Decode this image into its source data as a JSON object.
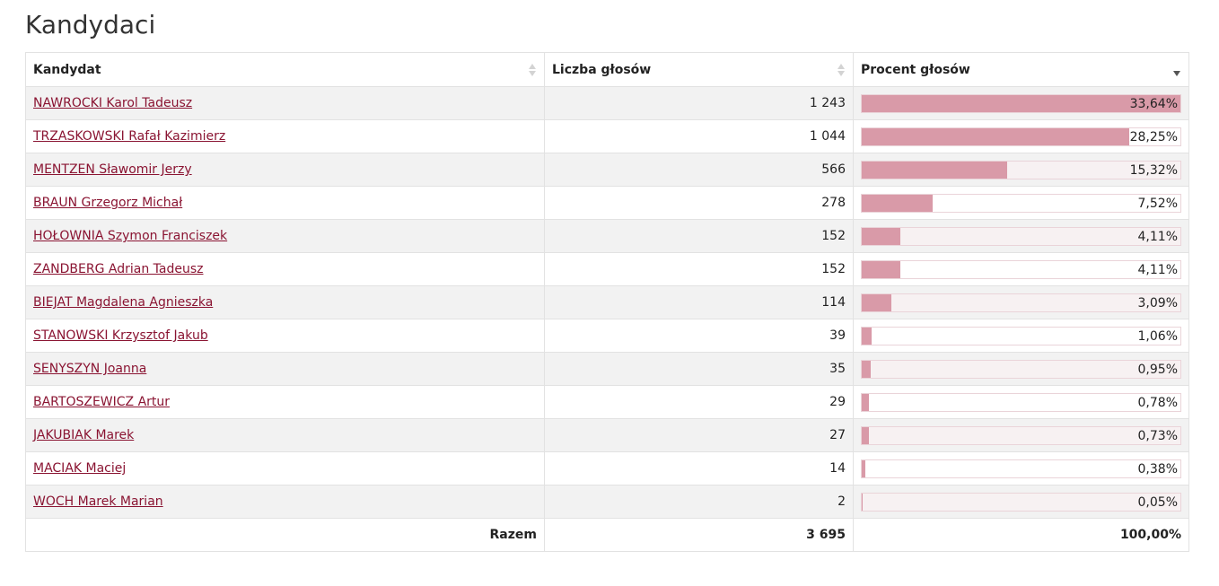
{
  "page": {
    "title": "Kandydaci"
  },
  "table": {
    "headers": {
      "candidate": "Kandydat",
      "votes": "Liczba głosów",
      "percent": "Procent głosów"
    },
    "sort": {
      "column": "percent",
      "direction": "desc"
    },
    "rows": [
      {
        "name": "NAWROCKI Karol Tadeusz",
        "votes": "1 243",
        "percent": "33,64%",
        "share": 33.64
      },
      {
        "name": "TRZASKOWSKI Rafał Kazimierz",
        "votes": "1 044",
        "percent": "28,25%",
        "share": 28.25
      },
      {
        "name": "MENTZEN Sławomir Jerzy",
        "votes": "566",
        "percent": "15,32%",
        "share": 15.32
      },
      {
        "name": "BRAUN Grzegorz Michał",
        "votes": "278",
        "percent": "7,52%",
        "share": 7.52
      },
      {
        "name": "HOŁOWNIA Szymon Franciszek",
        "votes": "152",
        "percent": "4,11%",
        "share": 4.11
      },
      {
        "name": "ZANDBERG Adrian Tadeusz",
        "votes": "152",
        "percent": "4,11%",
        "share": 4.11
      },
      {
        "name": "BIEJAT Magdalena Agnieszka",
        "votes": "114",
        "percent": "3,09%",
        "share": 3.09
      },
      {
        "name": "STANOWSKI Krzysztof Jakub",
        "votes": "39",
        "percent": "1,06%",
        "share": 1.06
      },
      {
        "name": "SENYSZYN Joanna",
        "votes": "35",
        "percent": "0,95%",
        "share": 0.95
      },
      {
        "name": "BARTOSZEWICZ Artur",
        "votes": "29",
        "percent": "0,78%",
        "share": 0.78
      },
      {
        "name": "JAKUBIAK Marek",
        "votes": "27",
        "percent": "0,73%",
        "share": 0.73
      },
      {
        "name": "MACIAK Maciej",
        "votes": "14",
        "percent": "0,38%",
        "share": 0.38
      },
      {
        "name": "WOCH Marek Marian",
        "votes": "2",
        "percent": "0,05%",
        "share": 0.05
      }
    ],
    "total": {
      "label": "Razem",
      "votes": "3 695",
      "percent": "100,00%"
    }
  },
  "colors": {
    "link": "#8a1432",
    "bar": "#d99aa8",
    "row_stripe": "#f2f2f2"
  },
  "icons": {
    "sort": "sort-arrows-icon",
    "sort_active": "sort-desc-icon"
  }
}
